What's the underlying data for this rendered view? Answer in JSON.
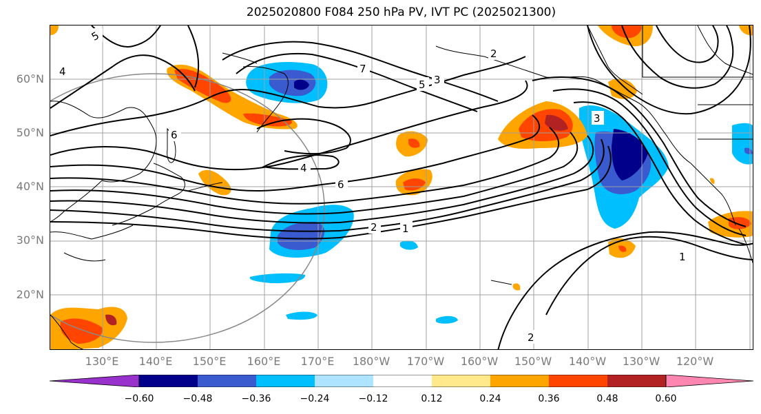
{
  "title": "2025020800 F084 250 hPa PV, IVT PC (2025021300)",
  "map": {
    "lat_labels": [
      "60°N",
      "50°N",
      "40°N",
      "30°N",
      "20°N"
    ],
    "lon_labels": [
      "130°E",
      "140°E",
      "150°E",
      "160°E",
      "170°E",
      "180°W",
      "170°W",
      "160°W",
      "150°W",
      "140°W",
      "130°W",
      "120°W"
    ],
    "contour_labels": [
      "5",
      "4",
      "6",
      "7",
      "5",
      "3",
      "2",
      "4",
      "6",
      "2",
      "1",
      "3",
      "1",
      "2"
    ],
    "colors": {
      "negative_strong": "#00008b",
      "negative_mid": "#3a5bd0",
      "negative_light": "#00bfff",
      "negative_faint": "#aee4ff",
      "positive_faint": "#ffe98a",
      "positive_light": "#ffa500",
      "positive_mid": "#ff4500",
      "positive_strong": "#b22222",
      "contour": "#000000",
      "coast": "#000000",
      "gridline": "#a0a0a0",
      "circle": "#888888"
    }
  },
  "colorbar": {
    "ticks": [
      "−0.60",
      "−0.48",
      "−0.36",
      "−0.24",
      "−0.12",
      "0.12",
      "0.24",
      "0.36",
      "0.48",
      "0.60"
    ],
    "colors": [
      "#9932cc",
      "#00008b",
      "#3a5bd0",
      "#00bfff",
      "#aee4ff",
      "#ffffff",
      "#ffe98a",
      "#ffa500",
      "#ff4500",
      "#b22222",
      "#ff86b0"
    ]
  }
}
